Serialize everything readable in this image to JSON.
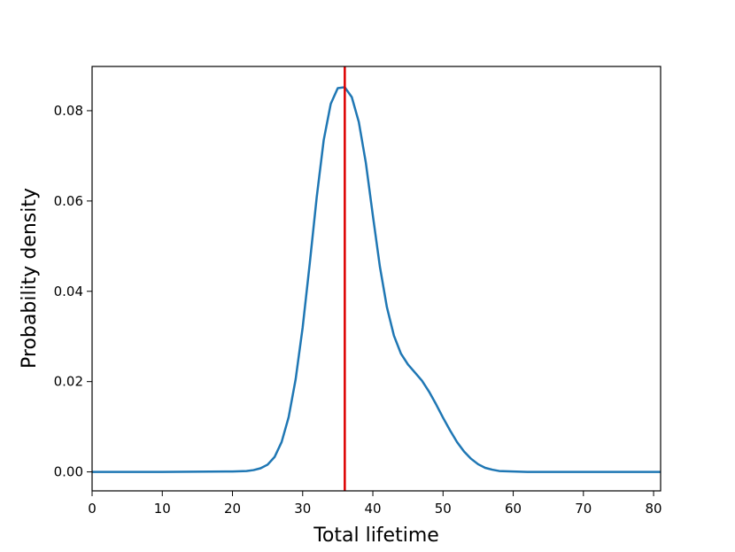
{
  "chart_data": {
    "type": "line",
    "title": "",
    "xlabel": "Total lifetime",
    "ylabel": "Probability density",
    "xlim": [
      0,
      81
    ],
    "ylim": [
      -0.0042,
      0.0898
    ],
    "xticks": [
      0,
      10,
      20,
      30,
      40,
      50,
      60,
      70,
      80
    ],
    "xtick_labels": [
      "0",
      "10",
      "20",
      "30",
      "40",
      "50",
      "60",
      "70",
      "80"
    ],
    "yticks": [
      0.0,
      0.02,
      0.04,
      0.06,
      0.08
    ],
    "ytick_labels": [
      "0.00",
      "0.02",
      "0.04",
      "0.06",
      "0.08"
    ],
    "grid": false,
    "series": [
      {
        "color": "#1f77b4",
        "x": [
          0,
          10,
          20,
          22,
          23,
          24,
          25,
          26,
          27,
          28,
          29,
          30,
          31,
          32,
          33,
          34,
          35,
          36,
          37,
          38,
          39,
          40,
          41,
          42,
          43,
          44,
          45,
          46,
          47,
          48,
          49,
          50,
          51,
          52,
          53,
          54,
          55,
          56,
          57,
          58,
          60,
          62,
          65,
          70,
          81
        ],
        "y": [
          0,
          0,
          0.0001,
          0.0002,
          0.0004,
          0.0008,
          0.0016,
          0.0033,
          0.0066,
          0.0121,
          0.0205,
          0.032,
          0.046,
          0.0608,
          0.0735,
          0.0815,
          0.085,
          0.0852,
          0.083,
          0.0775,
          0.0685,
          0.0568,
          0.0455,
          0.0365,
          0.0302,
          0.0262,
          0.0238,
          0.022,
          0.0202,
          0.0178,
          0.015,
          0.012,
          0.0092,
          0.0066,
          0.0045,
          0.0029,
          0.0017,
          0.0009,
          0.0005,
          0.0002,
          0.0001,
          0,
          0,
          0,
          0
        ]
      }
    ],
    "vline": {
      "x": 36,
      "color": "#dd0000"
    }
  }
}
